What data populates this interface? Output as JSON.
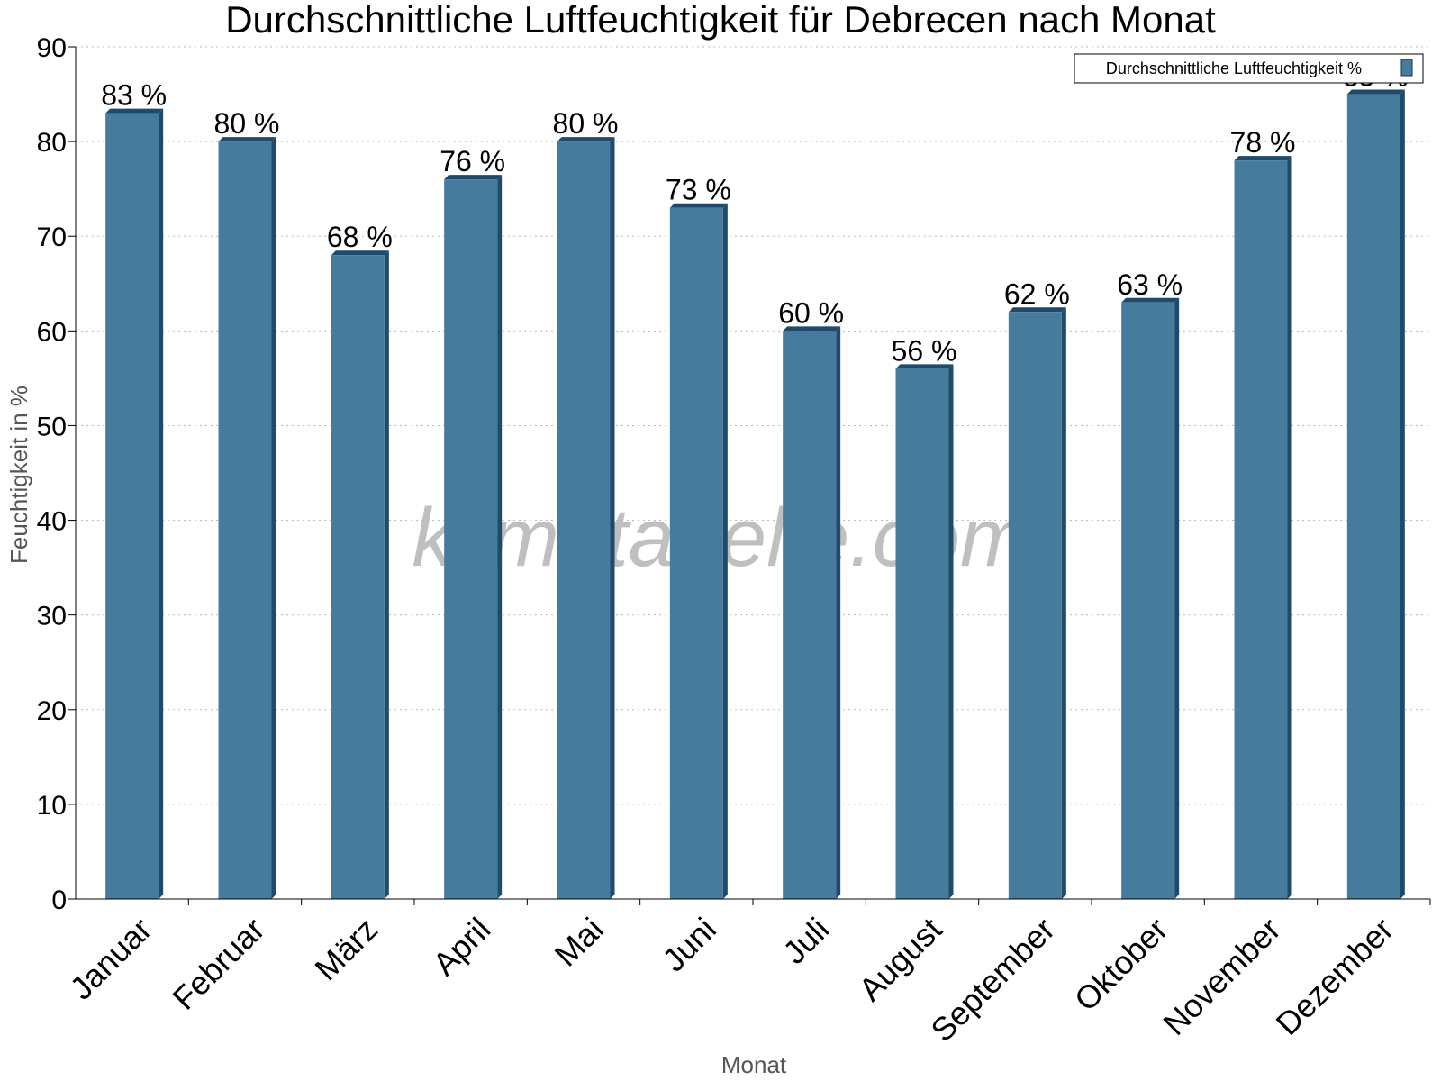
{
  "chart_data": {
    "type": "bar",
    "title": "Durchschnittliche Luftfeuchtigkeit für Debrecen nach Monat",
    "xlabel": "Monat",
    "ylabel": "Feuchtigkeit in %",
    "categories": [
      "Januar",
      "Februar",
      "März",
      "April",
      "Mai",
      "Juni",
      "Juli",
      "August",
      "September",
      "Oktober",
      "November",
      "Dezember"
    ],
    "series": [
      {
        "name": "Durchschnittliche Luftfeuchtigkeit %",
        "values": [
          83,
          80,
          68,
          76,
          80,
          73,
          60,
          56,
          62,
          63,
          78,
          85
        ],
        "labels": [
          "83 %",
          "80 %",
          "68 %",
          "76 %",
          "80 %",
          "73 %",
          "60 %",
          "56 %",
          "62 %",
          "63 %",
          "78 %",
          "85 %"
        ],
        "color": "#457b9d"
      }
    ],
    "ylim": [
      0,
      90
    ],
    "yticks": [
      0,
      10,
      20,
      30,
      40,
      50,
      60,
      70,
      80,
      90
    ],
    "grid": true,
    "legend_position": "top-right",
    "watermark": "klimatabelle.com"
  }
}
